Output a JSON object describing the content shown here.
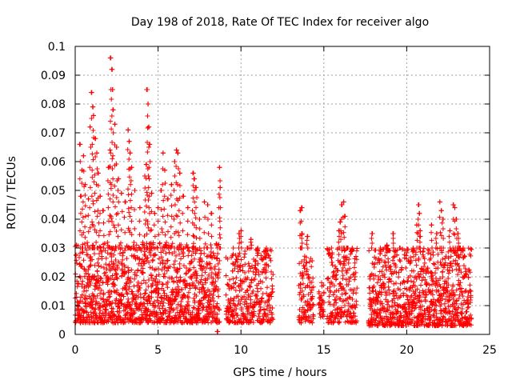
{
  "chart_data": {
    "type": "scatter",
    "title": "Day 198 of 2018, Rate Of TEC Index for receiver algo",
    "xlabel": "GPS time / hours",
    "ylabel": "ROTI / TECUs",
    "xlim": [
      0,
      25
    ],
    "ylim": [
      0,
      0.1
    ],
    "xticks": [
      "0",
      "5",
      "10",
      "15",
      "20",
      "25"
    ],
    "yticks": [
      "0",
      "0.01",
      "0.02",
      "0.03",
      "0.04",
      "0.05",
      "0.06",
      "0.07",
      "0.08",
      "0.09",
      "0.1"
    ],
    "grid": true,
    "marker": "plus",
    "color": "#ff0000",
    "segments": [
      {
        "start": 0.0,
        "end": 8.7,
        "base_min": 0.004,
        "base_max": 0.032,
        "step": 0.02
      },
      {
        "start": 9.1,
        "end": 11.95,
        "base_min": 0.004,
        "base_max": 0.03,
        "step": 0.025
      },
      {
        "start": 13.5,
        "end": 14.4,
        "base_min": 0.004,
        "base_max": 0.028,
        "step": 0.025
      },
      {
        "start": 14.7,
        "end": 15.0,
        "base_min": 0.006,
        "base_max": 0.018,
        "step": 0.03
      },
      {
        "start": 15.2,
        "end": 17.0,
        "base_min": 0.004,
        "base_max": 0.03,
        "step": 0.025
      },
      {
        "start": 17.7,
        "end": 23.9,
        "base_min": 0.003,
        "base_max": 0.03,
        "step": 0.02
      }
    ],
    "peaks": [
      [
        0.3,
        0.066
      ],
      [
        0.4,
        0.057
      ],
      [
        0.5,
        0.062
      ],
      [
        0.6,
        0.052
      ],
      [
        0.8,
        0.047
      ],
      [
        0.9,
        0.072
      ],
      [
        1.0,
        0.084
      ],
      [
        1.05,
        0.079
      ],
      [
        1.1,
        0.076
      ],
      [
        1.2,
        0.068
      ],
      [
        1.3,
        0.063
      ],
      [
        1.4,
        0.056
      ],
      [
        1.5,
        0.048
      ],
      [
        1.7,
        0.043
      ],
      [
        2.0,
        0.058
      ],
      [
        2.1,
        0.064
      ],
      [
        2.15,
        0.096
      ],
      [
        2.2,
        0.092
      ],
      [
        2.25,
        0.085
      ],
      [
        2.3,
        0.078
      ],
      [
        2.4,
        0.073
      ],
      [
        2.5,
        0.065
      ],
      [
        2.6,
        0.054
      ],
      [
        2.8,
        0.049
      ],
      [
        3.0,
        0.046
      ],
      [
        3.2,
        0.071
      ],
      [
        3.25,
        0.067
      ],
      [
        3.3,
        0.063
      ],
      [
        3.4,
        0.058
      ],
      [
        3.6,
        0.05
      ],
      [
        3.9,
        0.044
      ],
      [
        4.2,
        0.055
      ],
      [
        4.3,
        0.059
      ],
      [
        4.35,
        0.085
      ],
      [
        4.4,
        0.08
      ],
      [
        4.45,
        0.072
      ],
      [
        4.5,
        0.066
      ],
      [
        4.6,
        0.049
      ],
      [
        4.8,
        0.042
      ],
      [
        5.0,
        0.044
      ],
      [
        5.2,
        0.05
      ],
      [
        5.3,
        0.063
      ],
      [
        5.4,
        0.057
      ],
      [
        5.6,
        0.047
      ],
      [
        5.8,
        0.052
      ],
      [
        6.0,
        0.06
      ],
      [
        6.1,
        0.064
      ],
      [
        6.2,
        0.063
      ],
      [
        6.3,
        0.056
      ],
      [
        6.5,
        0.048
      ],
      [
        6.8,
        0.044
      ],
      [
        7.1,
        0.056
      ],
      [
        7.2,
        0.054
      ],
      [
        7.3,
        0.051
      ],
      [
        7.5,
        0.04
      ],
      [
        7.8,
        0.046
      ],
      [
        8.0,
        0.045
      ],
      [
        8.2,
        0.042
      ],
      [
        8.7,
        0.058
      ],
      [
        8.75,
        0.051
      ],
      [
        8.6,
        0.001
      ],
      [
        9.5,
        0.022
      ],
      [
        9.9,
        0.035
      ],
      [
        10.0,
        0.036
      ],
      [
        10.4,
        0.03
      ],
      [
        10.6,
        0.033
      ],
      [
        11.0,
        0.029
      ],
      [
        11.5,
        0.028
      ],
      [
        13.6,
        0.043
      ],
      [
        13.65,
        0.044
      ],
      [
        13.7,
        0.035
      ],
      [
        14.0,
        0.034
      ],
      [
        15.5,
        0.025
      ],
      [
        15.9,
        0.036
      ],
      [
        16.0,
        0.039
      ],
      [
        16.1,
        0.045
      ],
      [
        16.2,
        0.046
      ],
      [
        16.25,
        0.041
      ],
      [
        16.4,
        0.03
      ],
      [
        16.7,
        0.029
      ],
      [
        17.9,
        0.035
      ],
      [
        18.4,
        0.028
      ],
      [
        18.8,
        0.031
      ],
      [
        19.2,
        0.035
      ],
      [
        19.6,
        0.03
      ],
      [
        20.4,
        0.029
      ],
      [
        20.6,
        0.038
      ],
      [
        20.7,
        0.045
      ],
      [
        20.75,
        0.042
      ],
      [
        20.8,
        0.036
      ],
      [
        21.5,
        0.038
      ],
      [
        21.8,
        0.035
      ],
      [
        22.0,
        0.046
      ],
      [
        22.1,
        0.043
      ],
      [
        22.2,
        0.04
      ],
      [
        22.6,
        0.036
      ],
      [
        22.8,
        0.045
      ],
      [
        22.9,
        0.044
      ],
      [
        23.0,
        0.04
      ],
      [
        23.1,
        0.035
      ],
      [
        23.2,
        0.03
      ],
      [
        23.4,
        0.029
      ]
    ]
  }
}
